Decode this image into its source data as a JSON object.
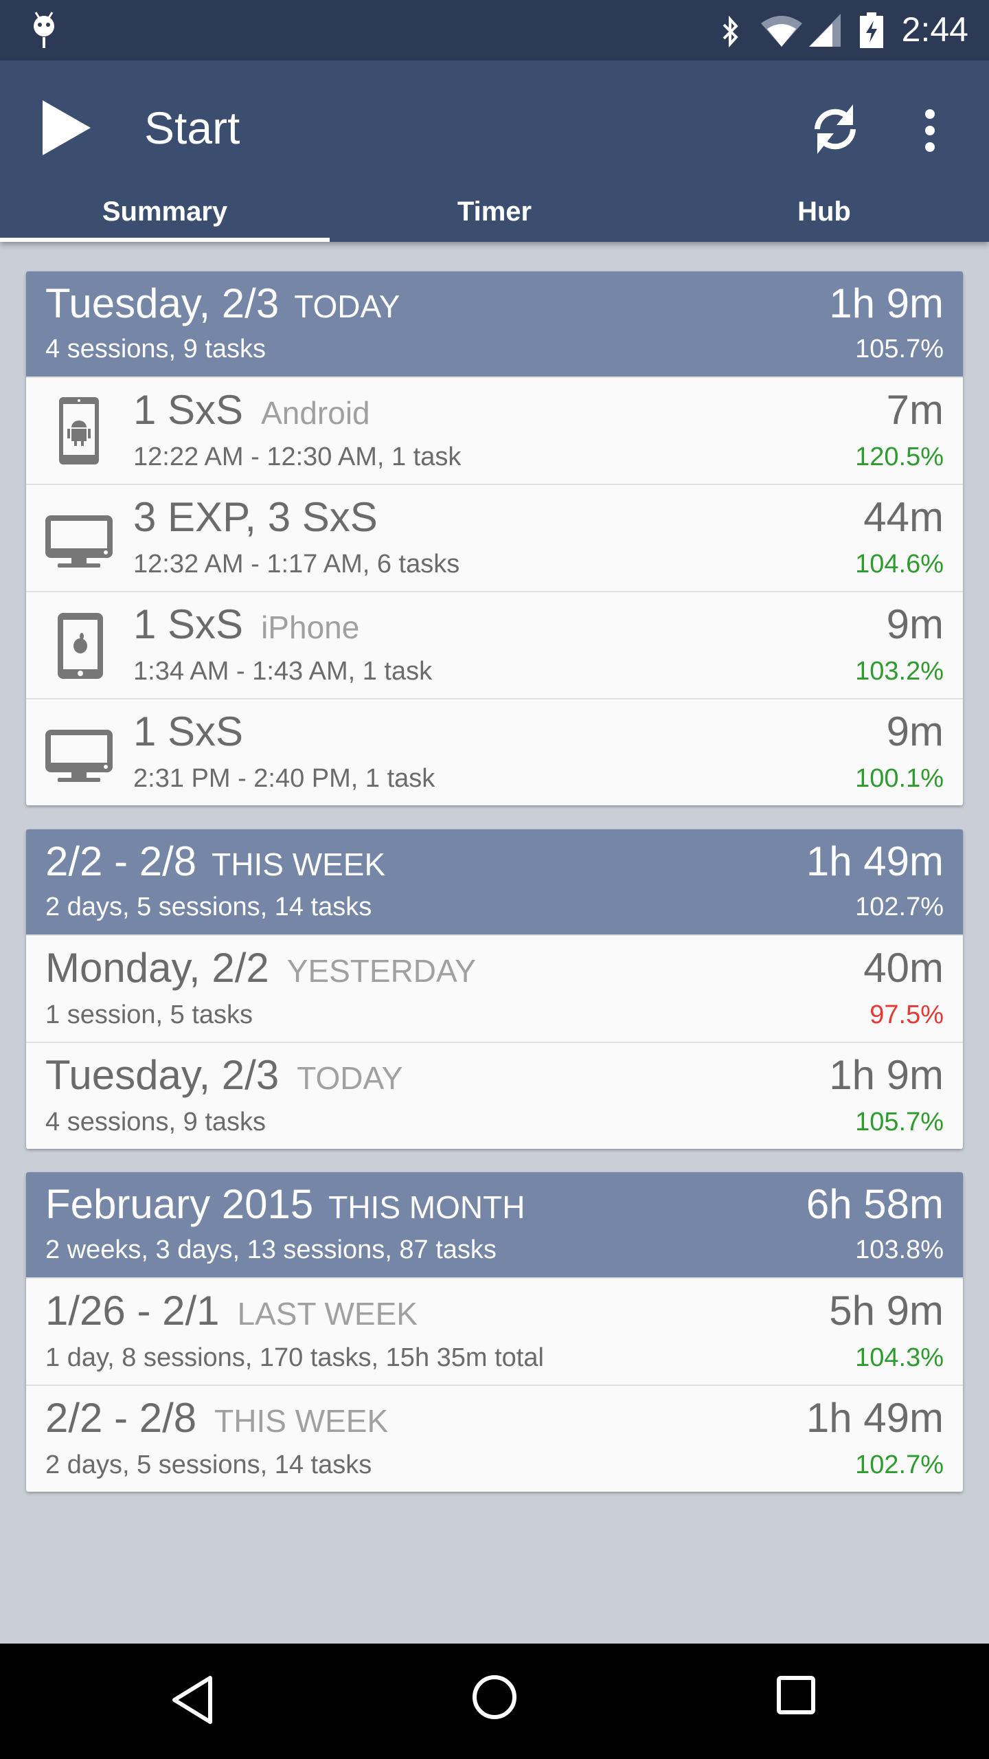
{
  "status_bar": {
    "time": "2:44",
    "icons": [
      "android-debug-icon",
      "bluetooth-icon",
      "wifi-icon",
      "signal-icon",
      "battery-charging-icon"
    ]
  },
  "app_bar": {
    "title": "Start",
    "actions": [
      "sync-icon",
      "overflow-menu-icon"
    ]
  },
  "tabs": [
    {
      "label": "Summary",
      "active": true
    },
    {
      "label": "Timer",
      "active": false
    },
    {
      "label": "Hub",
      "active": false
    }
  ],
  "colors": {
    "green": "#2e9b2e",
    "red": "#e53935",
    "header": "#7586a6",
    "appbar": "#3c4e70"
  },
  "cards": [
    {
      "header": {
        "title": "Tuesday, 2/3",
        "tag": "TODAY",
        "sub": "4 sessions, 9 tasks",
        "duration": "1h 9m",
        "percent": "105.7%"
      },
      "rows": [
        {
          "icon": "android-phone",
          "title": "1 SxS",
          "tag": "Android",
          "sub": "12:22 AM - 12:30 AM, 1 task",
          "duration": "7m",
          "percent": "120.5%",
          "status": "green"
        },
        {
          "icon": "desktop",
          "title": "3 EXP, 3 SxS",
          "tag": "",
          "sub": "12:32 AM - 1:17 AM, 6 tasks",
          "duration": "44m",
          "percent": "104.6%",
          "status": "green"
        },
        {
          "icon": "iphone",
          "title": "1 SxS",
          "tag": "iPhone",
          "sub": "1:34 AM - 1:43 AM, 1 task",
          "duration": "9m",
          "percent": "103.2%",
          "status": "green"
        },
        {
          "icon": "desktop",
          "title": "1 SxS",
          "tag": "",
          "sub": "2:31 PM - 2:40 PM, 1 task",
          "duration": "9m",
          "percent": "100.1%",
          "status": "green"
        }
      ]
    },
    {
      "header": {
        "title": "2/2 - 2/8",
        "tag": "THIS WEEK",
        "sub": "2 days, 5 sessions, 14 tasks",
        "duration": "1h 49m",
        "percent": "102.7%"
      },
      "rows": [
        {
          "title": "Monday, 2/2",
          "tag": "YESTERDAY",
          "sub": "1 session, 5 tasks",
          "duration": "40m",
          "percent": "97.5%",
          "status": "red"
        },
        {
          "title": "Tuesday, 2/3",
          "tag": "TODAY",
          "sub": "4 sessions, 9 tasks",
          "duration": "1h 9m",
          "percent": "105.7%",
          "status": "green"
        }
      ]
    },
    {
      "header": {
        "title": "February 2015",
        "tag": "THIS MONTH",
        "sub": "2 weeks, 3 days, 13 sessions, 87 tasks",
        "duration": "6h 58m",
        "percent": "103.8%"
      },
      "rows": [
        {
          "title": "1/26 - 2/1",
          "tag": "LAST WEEK",
          "sub": "1 day, 8 sessions, 170 tasks, 15h 35m total",
          "duration": "5h 9m",
          "percent": "104.3%",
          "status": "green"
        },
        {
          "title": "2/2 - 2/8",
          "tag": "THIS WEEK",
          "sub": "2 days, 5 sessions, 14 tasks",
          "duration": "1h 49m",
          "percent": "102.7%",
          "status": "green"
        }
      ]
    }
  ]
}
